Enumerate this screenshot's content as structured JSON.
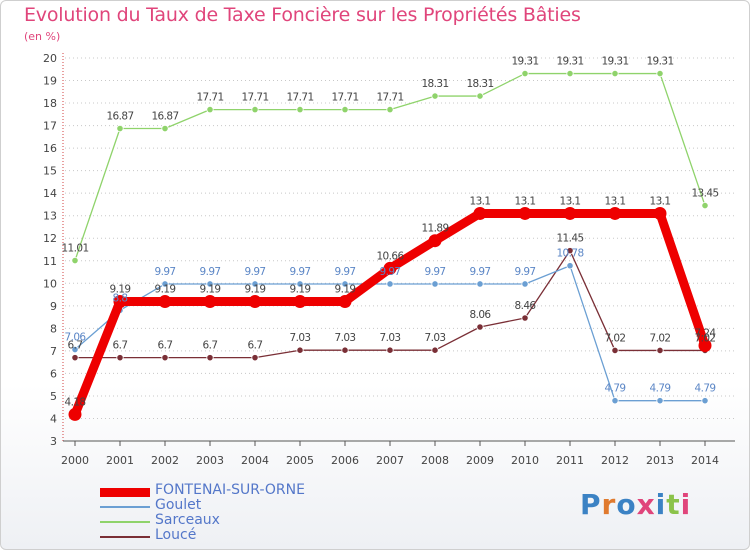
{
  "header": {
    "title": "Evolution du Taux de Taxe Foncière sur les Propriétés Bâties",
    "subtitle": "(en %)"
  },
  "logo": {
    "text": "Proxiti"
  },
  "chart_data": {
    "type": "line",
    "title": "Evolution du Taux de Taxe Foncière sur les Propriétés Bâties",
    "ylabel": "(en %)",
    "xlabel": "",
    "ylim": [
      3,
      20
    ],
    "grid": "horizontal dotted",
    "legend_position": "bottom-left",
    "yticks": [
      "3",
      "4",
      "5",
      "6",
      "7",
      "8",
      "9",
      "10",
      "11",
      "12",
      "13",
      "14",
      "15",
      "16",
      "17",
      "18",
      "19",
      "20"
    ],
    "categories": [
      "2000",
      "2001",
      "2002",
      "2003",
      "2004",
      "2005",
      "2006",
      "2007",
      "2008",
      "2009",
      "2010",
      "2011",
      "2012",
      "2013",
      "2014"
    ],
    "series": [
      {
        "name": "FONTENAI-SUR-ORNE",
        "color": "#ee0000",
        "values": [
          4.18,
          9.19,
          9.19,
          9.19,
          9.19,
          9.19,
          9.19,
          10.66,
          11.89,
          13.1,
          13.1,
          13.1,
          13.1,
          13.1,
          7.24
        ],
        "labels": [
          "4.18",
          "9.19",
          "9.19",
          "9.19",
          "9.19",
          "9.19",
          "9.19",
          "10.66",
          "11.89",
          "13.1",
          "13.1",
          "13.1",
          "13.1",
          "13.1",
          "7.24"
        ]
      },
      {
        "name": "Goulet",
        "color": "#6b9fd3",
        "values": [
          7.06,
          8.8,
          9.97,
          9.97,
          9.97,
          9.97,
          9.97,
          9.97,
          9.97,
          9.97,
          9.97,
          10.78,
          4.79,
          4.79,
          4.79
        ],
        "labels": [
          "7.06",
          "8.8",
          "9.97",
          "9.97",
          "9.97",
          "9.97",
          "9.97",
          "9.97",
          "9.97",
          "9.97",
          "9.97",
          "10.78",
          "4.79",
          "4.79",
          "4.79"
        ]
      },
      {
        "name": "Sarceaux",
        "color": "#8fd36b",
        "values": [
          11.01,
          16.87,
          16.87,
          17.71,
          17.71,
          17.71,
          17.71,
          17.71,
          18.31,
          18.31,
          19.31,
          19.31,
          19.31,
          19.31,
          13.45
        ],
        "labels": [
          "11.01",
          "16.87",
          "16.87",
          "17.71",
          "17.71",
          "17.71",
          "17.71",
          "17.71",
          "18.31",
          "18.31",
          "19.31",
          "19.31",
          "19.31",
          "19.31",
          "13.45"
        ]
      },
      {
        "name": "Loucé",
        "color": "#7a2f36",
        "values": [
          6.7,
          6.7,
          6.7,
          6.7,
          6.7,
          7.03,
          7.03,
          7.03,
          7.03,
          8.06,
          8.46,
          11.45,
          7.02,
          7.02,
          7.02
        ],
        "labels": [
          "6.7",
          "6.7",
          "6.7",
          "6.7",
          "6.7",
          "7.03",
          "7.03",
          "7.03",
          "7.03",
          "8.06",
          "8.46",
          "11.45",
          "7.02",
          "7.02",
          "7.02"
        ]
      }
    ]
  }
}
